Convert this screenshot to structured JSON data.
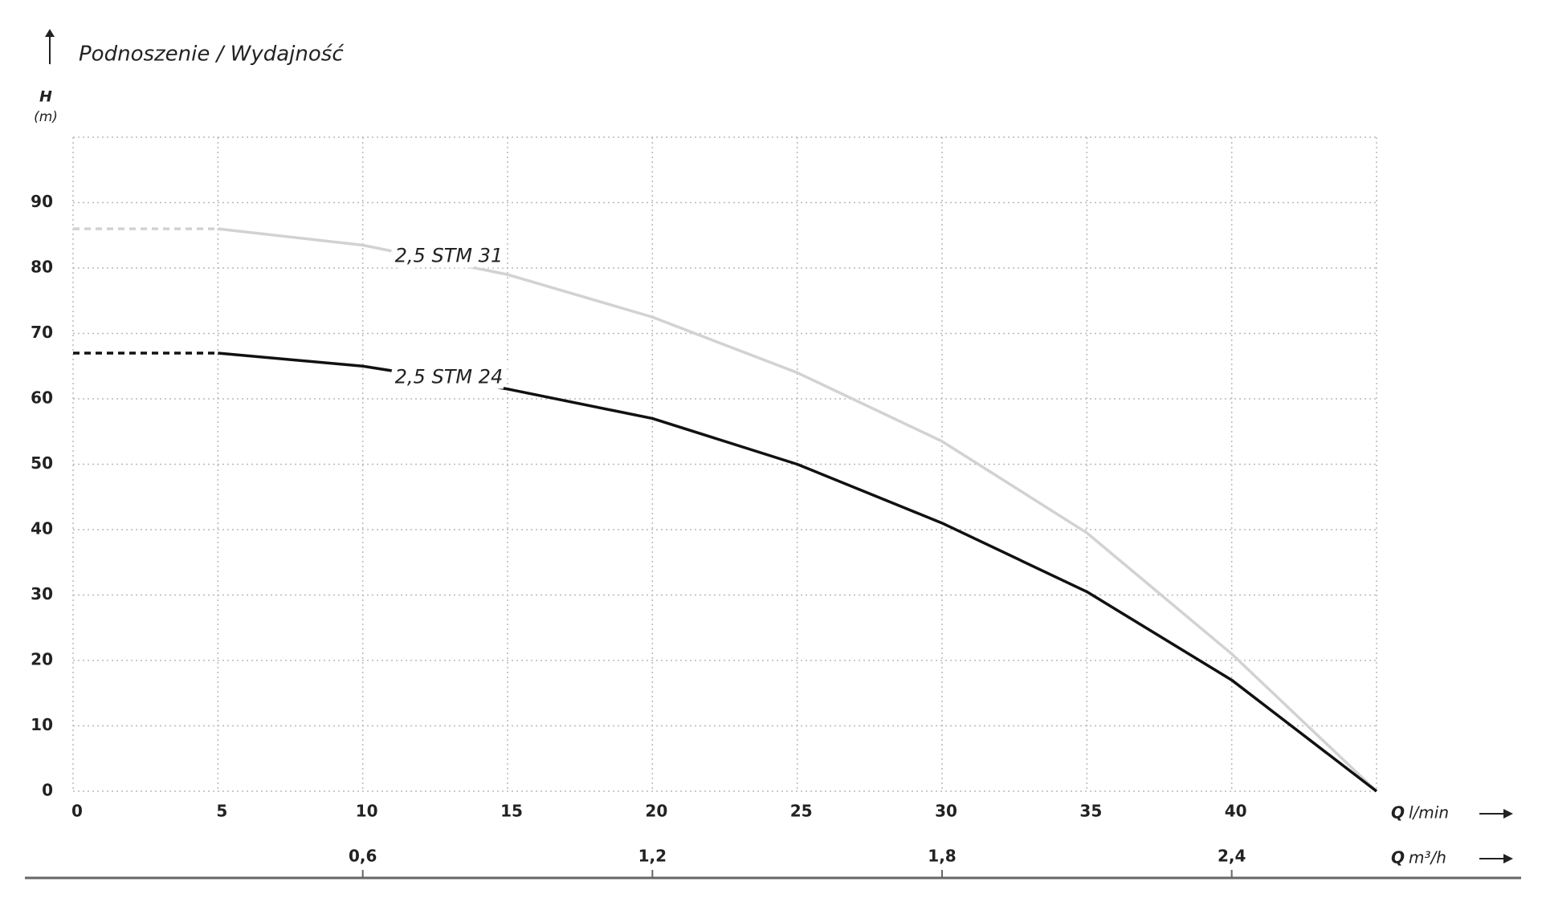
{
  "chart_data": {
    "type": "line",
    "title": "Podnoszenie / Wydajność",
    "y_label": "H",
    "y_unit": "(m)",
    "x_label": {
      "symbol": "Q",
      "unit": "l/min"
    },
    "x2_label": {
      "symbol": "Q",
      "unit": "m³/h"
    },
    "x": [
      0,
      5,
      10,
      15,
      20,
      25,
      30,
      35,
      40,
      45
    ],
    "series": [
      {
        "name": "2,5 STM 31",
        "color": "#d2d2d2",
        "values": [
          86,
          86,
          83.5,
          79,
          72.5,
          64,
          53.5,
          39.5,
          21,
          0
        ]
      },
      {
        "name": "2,5 STM 24",
        "color": "#111111",
        "values": [
          67,
          67,
          65,
          61.5,
          57,
          50,
          41,
          30.5,
          17,
          0
        ]
      }
    ],
    "xlim": [
      0,
      45
    ],
    "xticks": [
      0,
      5,
      10,
      15,
      20,
      25,
      30,
      35,
      40
    ],
    "x2lim": [
      0,
      2.7
    ],
    "x2ticks": [
      {
        "value": 0.6,
        "label": "0,6"
      },
      {
        "value": 1.2,
        "label": "1,2"
      },
      {
        "value": 1.8,
        "label": "1,8"
      },
      {
        "value": 2.4,
        "label": "2,4"
      }
    ],
    "ylim": [
      0,
      100
    ],
    "yticks": [
      0,
      10,
      20,
      30,
      40,
      50,
      60,
      70,
      80,
      90
    ],
    "grid": true
  }
}
